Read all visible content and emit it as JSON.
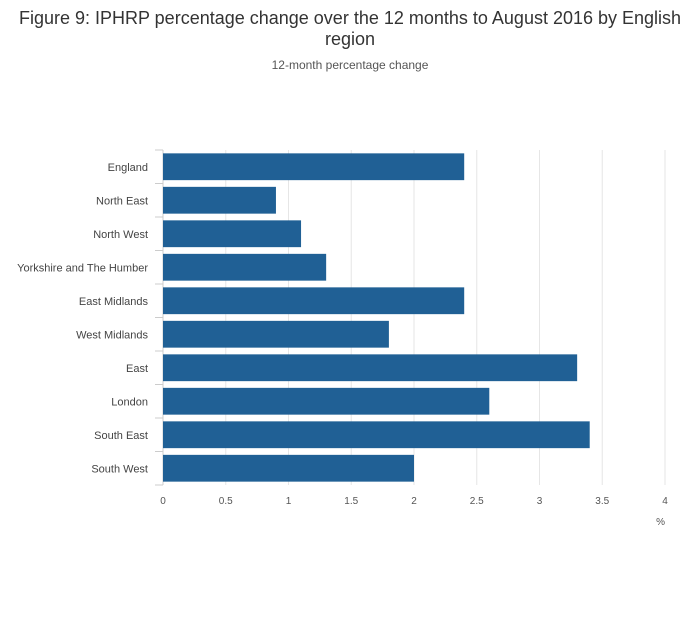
{
  "chart_data": {
    "type": "bar",
    "orientation": "horizontal",
    "title": "Figure 9: IPHRP percentage change over the 12 months to August 2016 by English region",
    "subtitle": "12-month percentage change",
    "xlabel": "%",
    "ylabel": "",
    "categories": [
      "England",
      "North East",
      "North West",
      "Yorkshire and The Humber",
      "East Midlands",
      "West Midlands",
      "East",
      "London",
      "South East",
      "South West"
    ],
    "values": [
      2.4,
      0.9,
      1.1,
      1.3,
      2.4,
      1.8,
      3.3,
      2.6,
      3.4,
      2.0
    ],
    "xlim": [
      0,
      4
    ],
    "xticks": [
      "0",
      "0.5",
      "1",
      "1.5",
      "2",
      "2.5",
      "3",
      "3.5",
      "4"
    ],
    "grid": true,
    "bar_color": "#206095"
  }
}
